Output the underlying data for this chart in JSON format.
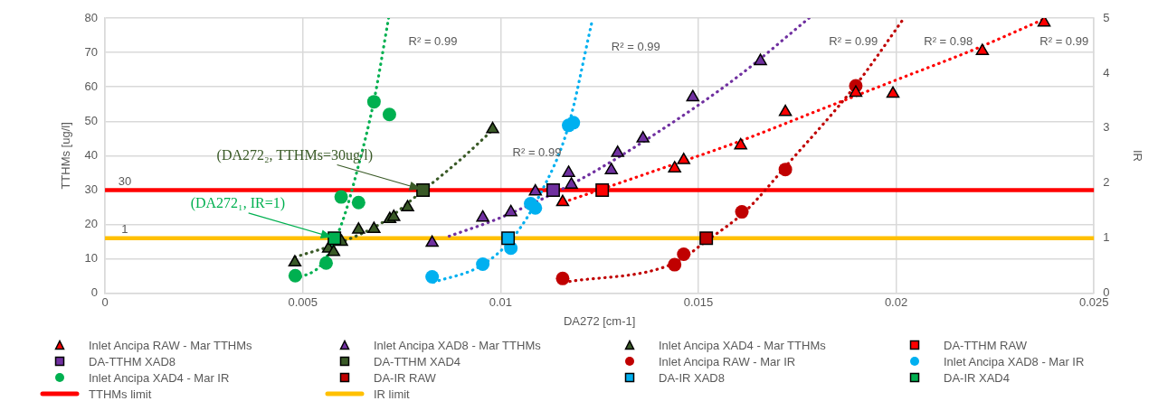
{
  "chart_data": {
    "type": "scatter",
    "xlabel": "DA272 [cm-1]",
    "ylabel": "TTHMs [ug/l]",
    "y2label": "IR",
    "xlim": [
      0,
      0.025
    ],
    "xticks": [
      0,
      0.005,
      0.01,
      0.015,
      0.02,
      0.025
    ],
    "ylim": [
      0,
      80
    ],
    "yticks": [
      0,
      10,
      20,
      30,
      40,
      50,
      60,
      70,
      80
    ],
    "y2lim": [
      0,
      5
    ],
    "y2ticks": [
      0,
      1,
      2,
      3,
      4,
      5
    ],
    "grid": true,
    "legend": "bottom",
    "series": [
      {
        "name": "Inlet Ancipa RAW - Mar TTHMs",
        "marker": "triangle",
        "color": "#ff0000",
        "x": [
          0.01157,
          0.0144,
          0.01463,
          0.01607,
          0.0172,
          0.01898,
          0.01992,
          0.02218,
          0.02374
        ],
        "values": [
          26.5,
          36.3,
          38.7,
          43,
          52.7,
          58.3,
          58,
          70.4,
          78.7
        ]
      },
      {
        "name": "Inlet Ancipa XAD8 - Mar TTHMs",
        "marker": "triangle",
        "color": "#7030a0",
        "x": [
          0.00827,
          0.00955,
          0.01026,
          0.01088,
          0.01172,
          0.01179,
          0.0128,
          0.01296,
          0.0136,
          0.01486,
          0.01657
        ],
        "values": [
          14.7,
          22,
          23.6,
          29.6,
          35,
          31.6,
          35.8,
          40.8,
          45,
          57,
          67.5
        ]
      },
      {
        "name": "Inlet Ancipa XAD4 - Mar TTHMs",
        "marker": "triangle",
        "color": "#3a5a27",
        "x": [
          0.0048,
          0.00565,
          0.00578,
          0.00598,
          0.00641,
          0.0068,
          0.0072,
          0.0073,
          0.00765,
          0.0098
        ],
        "values": [
          9,
          13,
          12,
          15,
          18.5,
          18.7,
          21.6,
          22.2,
          25,
          47.7
        ]
      },
      {
        "name": "DA-TTHM RAW",
        "marker": "square",
        "color": "#ff0000",
        "x": [
          0.01257
        ],
        "values": [
          30
        ]
      },
      {
        "name": "DA-TTHM XAD8",
        "marker": "square",
        "color": "#7030a0",
        "x": [
          0.01133
        ],
        "values": [
          30
        ]
      },
      {
        "name": "DA-TTHM XAD4",
        "marker": "square",
        "color": "#3a5a27",
        "x": [
          0.00804
        ],
        "values": [
          30
        ]
      },
      {
        "name": "Inlet Ancipa RAW - Mar IR",
        "marker": "circle",
        "color": "#c00000",
        "axis": "y2",
        "x": [
          0.01157,
          0.0144,
          0.01463,
          0.0161,
          0.0172,
          0.01898
        ],
        "values": [
          0.27,
          0.52,
          0.71,
          1.48,
          2.25,
          3.77
        ]
      },
      {
        "name": "Inlet Ancipa XAD8 - Mar IR",
        "marker": "circle",
        "color": "#00b0f0",
        "axis": "y2",
        "x": [
          0.00827,
          0.00955,
          0.01026,
          0.01076,
          0.01088,
          0.01172,
          0.01184
        ],
        "values": [
          0.3,
          0.53,
          0.82,
          1.63,
          1.55,
          3.05,
          3.1
        ]
      },
      {
        "name": "Inlet Ancipa XAD4 - Mar IR",
        "marker": "circle",
        "color": "#00b050",
        "axis": "y2",
        "x": [
          0.00481,
          0.00559,
          0.00597,
          0.00641,
          0.0068,
          0.00719
        ],
        "values": [
          0.32,
          0.55,
          1.75,
          1.65,
          3.48,
          3.25
        ]
      },
      {
        "name": "DA-IR RAW",
        "marker": "square",
        "color": "#c00000",
        "axis": "y2",
        "x": [
          0.0152
        ],
        "values": [
          1
        ]
      },
      {
        "name": "DA-IR XAD8",
        "marker": "square",
        "color": "#00b0f0",
        "axis": "y2",
        "x": [
          0.01019
        ],
        "values": [
          1
        ]
      },
      {
        "name": "DA-IR XAD4",
        "marker": "square",
        "color": "#00b050",
        "axis": "y2",
        "x": [
          0.0058
        ],
        "values": [
          1
        ]
      },
      {
        "type": "line",
        "marker": "none",
        "line_style": "dotted",
        "color": "#00b050",
        "axis": "y2",
        "x": [
          0.0048,
          0.0055,
          0.006,
          0.0064,
          0.0068,
          0.00717
        ],
        "values": [
          0.25,
          0.55,
          1.3,
          2.3,
          3.5,
          5
        ]
      },
      {
        "type": "line",
        "marker": "none",
        "line_style": "dotted",
        "color": "#3a5a27",
        "x": [
          0.0048,
          0.006,
          0.007,
          0.008,
          0.009,
          0.0098
        ],
        "values": [
          10.5,
          15,
          20.5,
          29.5,
          39,
          47.5
        ]
      },
      {
        "type": "line",
        "marker": "none",
        "line_style": "dotted",
        "color": "#00b0f0",
        "axis": "y2",
        "x": [
          0.0083,
          0.0095,
          0.0103,
          0.011,
          0.0117,
          0.0123
        ],
        "values": [
          0.2,
          0.5,
          1,
          1.8,
          3,
          4.9
        ]
      },
      {
        "type": "line",
        "marker": "none",
        "line_style": "dotted",
        "color": "#7030a0",
        "x": [
          0.0087,
          0.01,
          0.012,
          0.014,
          0.016,
          0.0178
        ],
        "values": [
          16.6,
          22,
          33,
          47,
          63,
          80
        ]
      },
      {
        "type": "line",
        "marker": "none",
        "line_style": "dotted",
        "color": "#c00000",
        "axis": "y2",
        "x": [
          0.0116,
          0.0144,
          0.0152,
          0.0162,
          0.0172,
          0.019,
          0.0202
        ],
        "values": [
          0.2,
          0.55,
          0.95,
          1.5,
          2.3,
          3.8,
          5
        ]
      },
      {
        "type": "line",
        "marker": "none",
        "line_style": "dotted",
        "color": "#ff0000",
        "x": [
          0.0116,
          0.014,
          0.016,
          0.018,
          0.02,
          0.022,
          0.0238
        ],
        "values": [
          26.5,
          36,
          44,
          53,
          62,
          71,
          80
        ]
      }
    ],
    "ref_lines": [
      {
        "axis": "y",
        "value": 30,
        "label": "TTHMs limit",
        "color": "#ff0000"
      },
      {
        "axis": "y2",
        "value": 1,
        "label": "IR limit",
        "color": "#ffc000"
      }
    ],
    "annotations": [
      {
        "text": "30",
        "x": 0.0005,
        "y": 30
      },
      {
        "text": "1",
        "x": 0.0005,
        "y": 16
      },
      "R² = 0.99",
      "R² = 0.99",
      "R² = 0.99",
      "R² = 0.99",
      "R² = 0.98",
      "R² = 0.99",
      {
        "text": "(DA272₂, TTHMs=30ug/l)",
        "x": 0.00804,
        "y": 30
      },
      {
        "text": "(DA272₁, IR=1)",
        "x": 0.0058,
        "y": 16
      }
    ]
  }
}
